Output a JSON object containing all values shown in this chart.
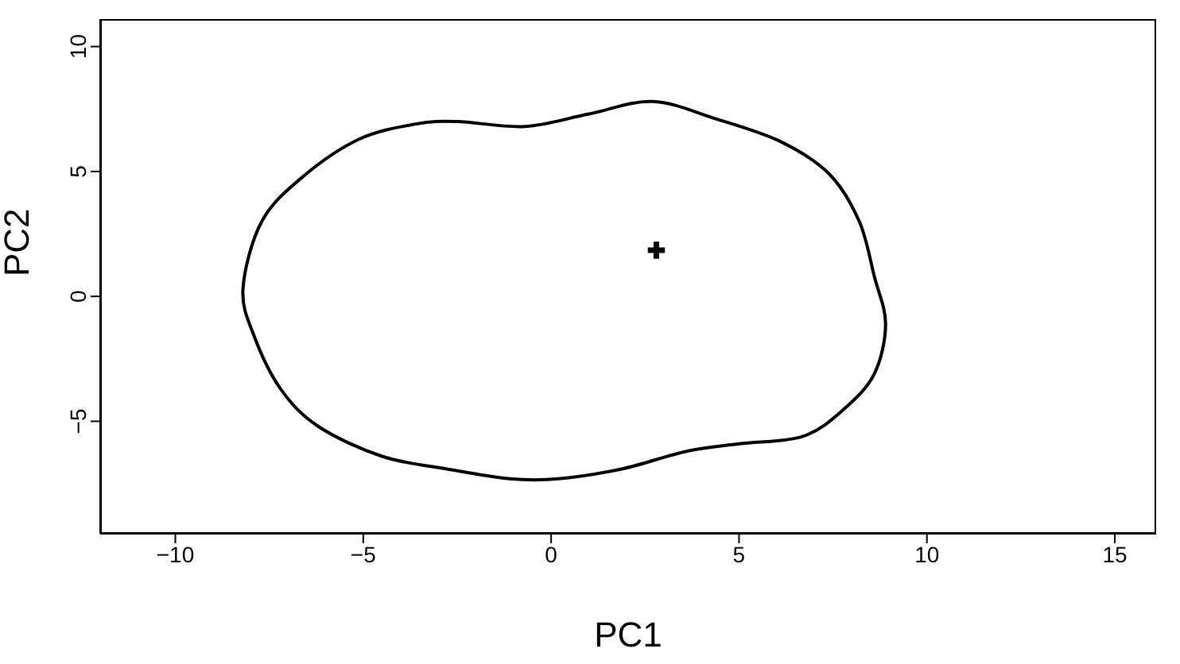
{
  "chart_data": {
    "type": "scatter",
    "xlabel": "PC1",
    "ylabel": "PC2",
    "xlim": [
      -12,
      16.1
    ],
    "ylim": [
      -9.5,
      11.1
    ],
    "xticks": [
      -10,
      -5,
      0,
      5,
      10,
      15
    ],
    "yticks": [
      -5,
      0,
      5,
      10
    ],
    "grid": false,
    "series": [
      {
        "color": "#000000",
        "marker": "cross",
        "x": [
          2.8
        ],
        "values": [
          1.85
        ]
      }
    ]
  }
}
